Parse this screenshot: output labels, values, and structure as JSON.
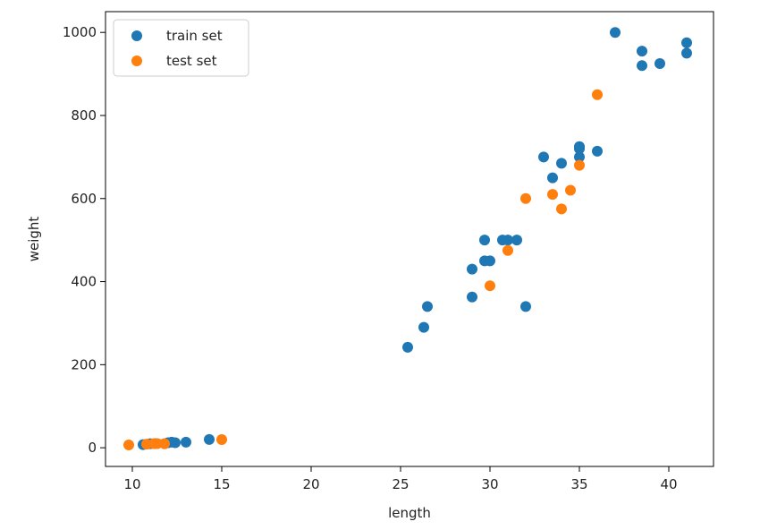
{
  "chart_data": {
    "type": "scatter",
    "title": "",
    "xlabel": "length",
    "ylabel": "weight",
    "xlim": [
      8.5,
      42.5
    ],
    "ylim": [
      -45,
      1050
    ],
    "xticks": [
      10,
      15,
      20,
      25,
      30,
      35,
      40
    ],
    "yticks": [
      0,
      200,
      400,
      600,
      800,
      1000
    ],
    "legend_position": "top-left",
    "grid": false,
    "series": [
      {
        "name": "train set",
        "color": "#1f77b4",
        "x": [
          10.6,
          11.0,
          11.3,
          11.8,
          12.0,
          12.2,
          12.4,
          13.0,
          14.3,
          25.4,
          26.3,
          26.5,
          29.0,
          29.0,
          29.7,
          29.7,
          30.0,
          30.7,
          31.0,
          31.5,
          32.0,
          33.0,
          33.5,
          34.0,
          35.0,
          35.0,
          35.0,
          36.0,
          37.0,
          38.5,
          38.5,
          39.5,
          41.0,
          41.0
        ],
        "y": [
          7.5,
          9.7,
          9.9,
          9.8,
          12.2,
          13.4,
          12.2,
          13.4,
          19.9,
          242,
          290,
          340,
          363,
          430,
          450,
          500,
          450,
          500,
          500,
          500,
          340,
          700,
          650,
          685,
          700,
          725,
          720,
          714,
          1000,
          920,
          955,
          925,
          975,
          950
        ]
      },
      {
        "name": "test set",
        "color": "#ff7f0e",
        "x": [
          9.8,
          10.8,
          11.2,
          11.4,
          11.8,
          15.0,
          30.0,
          31.0,
          32.0,
          33.5,
          34.0,
          34.5,
          35.0,
          36.0
        ],
        "y": [
          6.7,
          8.7,
          10.0,
          10.0,
          9.8,
          19.7,
          390,
          475,
          600,
          610,
          575,
          620,
          680,
          850
        ]
      }
    ]
  }
}
